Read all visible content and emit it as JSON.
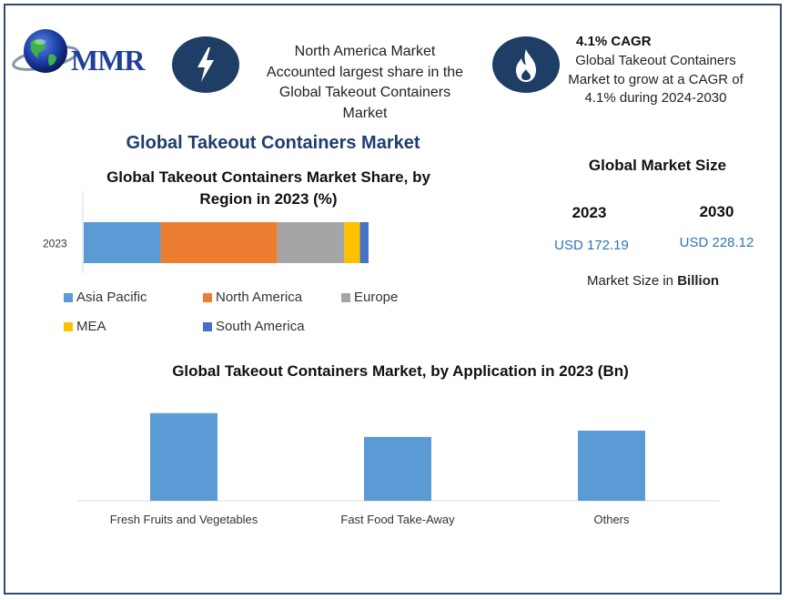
{
  "logo": {
    "text": "MMR",
    "icon": "globe-icon"
  },
  "info1": {
    "icon": "lightning-icon",
    "lines": [
      "North America Market",
      "Accounted largest share in the",
      "Global Takeout Containers",
      "Market"
    ]
  },
  "info2": {
    "icon": "flame-icon",
    "title": "4.1% CAGR",
    "lines": [
      "Global Takeout Containers",
      "Market to grow at a CAGR of",
      "4.1% during 2024-2030"
    ]
  },
  "main_title": "Global Takeout Containers Market",
  "market_size": {
    "title": "Global Market Size",
    "year1": "2023",
    "value1": "USD 172.19",
    "year2": "2030",
    "value2": "USD 228.12",
    "unit_prefix": "Market Size in ",
    "unit_bold": "Billion"
  },
  "colors": {
    "asia_pacific": "#5b9bd5",
    "north_america": "#ed7d31",
    "europe": "#a5a5a5",
    "mea": "#ffc000",
    "south_america": "#4472c4",
    "badge": "#1f3e66",
    "accent_text": "#2e75b6"
  },
  "chart_data": [
    {
      "type": "bar",
      "orientation": "horizontal-stacked",
      "title_line1": "Global Takeout Containers Market Share, by",
      "title_line2": "Region in 2023 (%)",
      "categories": [
        "2023"
      ],
      "series": [
        {
          "name": "Asia Pacific",
          "values": [
            27
          ]
        },
        {
          "name": "North America",
          "values": [
            41
          ]
        },
        {
          "name": "Europe",
          "values": [
            23.5
          ]
        },
        {
          "name": "MEA",
          "values": [
            5.5
          ]
        },
        {
          "name": "South America",
          "values": [
            3
          ]
        }
      ],
      "xlim": [
        0,
        100
      ],
      "grid": false,
      "legend": "bottom"
    },
    {
      "type": "bar",
      "title": "Global Takeout Containers Market, by Application in 2023 (Bn)",
      "categories": [
        "Fresh Fruits and Vegetables",
        "Fast Food Take-Away",
        "Others"
      ],
      "values": [
        70,
        51,
        56
      ],
      "ylim": [
        0,
        80
      ],
      "grid": false
    }
  ]
}
